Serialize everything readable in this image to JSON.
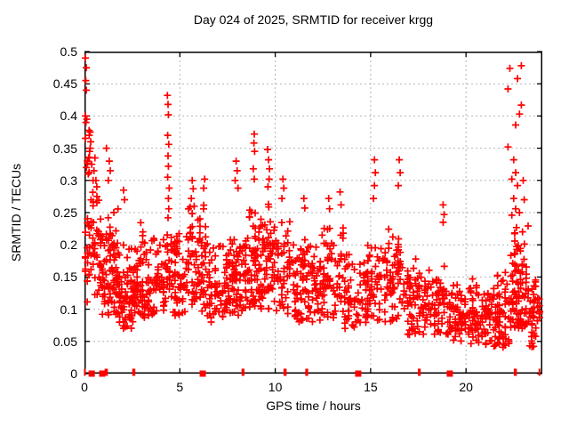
{
  "chart_data": {
    "type": "scatter",
    "title": "Day 024 of 2025, SRMTID for receiver krgg",
    "xlabel": "GPS time / hours",
    "ylabel": "SRMTID / TECUs",
    "xlim": [
      0,
      24
    ],
    "ylim": [
      0,
      0.5
    ],
    "xtick_values": [
      0,
      5,
      10,
      15,
      20
    ],
    "xtick_labels": [
      "0",
      "5",
      "10",
      "15",
      "20"
    ],
    "ytick_values": [
      0,
      0.05,
      0.1,
      0.15,
      0.2,
      0.25,
      0.3,
      0.35,
      0.4,
      0.45,
      0.5
    ],
    "ytick_labels": [
      "0",
      "0.05",
      "0.1",
      "0.15",
      "0.2",
      "0.25",
      "0.3",
      "0.35",
      "0.4",
      "0.45",
      "0.5"
    ],
    "grid": true,
    "legend": "none",
    "marker": "plus",
    "marker_color": "#ff0000",
    "grid_color": "#b5b5b5",
    "frame_color": "#000000",
    "seed": 20250124,
    "outlier_points": [
      [
        0.05,
        0.49
      ],
      [
        0.1,
        0.475
      ],
      [
        0.07,
        0.455
      ],
      [
        0.1,
        0.44
      ],
      [
        0.05,
        0.4
      ],
      [
        0.12,
        0.395
      ],
      [
        0.08,
        0.39
      ],
      [
        0.3,
        0.375
      ],
      [
        0.25,
        0.37
      ],
      [
        0.33,
        0.36
      ],
      [
        0.3,
        0.35
      ],
      [
        0.27,
        0.345
      ],
      [
        0.22,
        0.335
      ],
      [
        0.15,
        0.33
      ],
      [
        0.38,
        0.325
      ],
      [
        0.1,
        0.32
      ],
      [
        0.2,
        0.31
      ],
      [
        0.45,
        0.3
      ],
      [
        0.55,
        0.335
      ],
      [
        0.5,
        0.315
      ],
      [
        0.6,
        0.3
      ],
      [
        0.65,
        0.29
      ],
      [
        1.15,
        0.35
      ],
      [
        1.3,
        0.33
      ],
      [
        1.35,
        0.315
      ],
      [
        1.25,
        0.3
      ],
      [
        2.05,
        0.285
      ],
      [
        2.1,
        0.27
      ],
      [
        4.35,
        0.432
      ],
      [
        4.38,
        0.418
      ],
      [
        4.4,
        0.402
      ],
      [
        4.36,
        0.37
      ],
      [
        4.42,
        0.356
      ],
      [
        4.38,
        0.338
      ],
      [
        4.4,
        0.322
      ],
      [
        4.36,
        0.305
      ],
      [
        4.44,
        0.288
      ],
      [
        4.4,
        0.272
      ],
      [
        4.42,
        0.256
      ],
      [
        4.38,
        0.242
      ],
      [
        5.65,
        0.3
      ],
      [
        5.7,
        0.287
      ],
      [
        5.6,
        0.272
      ],
      [
        5.75,
        0.26
      ],
      [
        6.3,
        0.302
      ],
      [
        6.25,
        0.288
      ],
      [
        7.95,
        0.33
      ],
      [
        8.0,
        0.315
      ],
      [
        7.9,
        0.3
      ],
      [
        8.05,
        0.288
      ],
      [
        8.9,
        0.372
      ],
      [
        8.88,
        0.358
      ],
      [
        8.92,
        0.345
      ],
      [
        8.85,
        0.318
      ],
      [
        8.9,
        0.302
      ],
      [
        9.6,
        0.348
      ],
      [
        9.65,
        0.332
      ],
      [
        9.7,
        0.318
      ],
      [
        9.68,
        0.302
      ],
      [
        9.62,
        0.29
      ],
      [
        10.4,
        0.302
      ],
      [
        10.45,
        0.288
      ],
      [
        10.35,
        0.272
      ],
      [
        11.5,
        0.272
      ],
      [
        11.55,
        0.257
      ],
      [
        12.8,
        0.272
      ],
      [
        12.85,
        0.256
      ],
      [
        13.4,
        0.282
      ],
      [
        13.45,
        0.262
      ],
      [
        15.2,
        0.332
      ],
      [
        15.25,
        0.312
      ],
      [
        15.2,
        0.292
      ],
      [
        15.15,
        0.272
      ],
      [
        16.5,
        0.332
      ],
      [
        16.55,
        0.312
      ],
      [
        16.45,
        0.292
      ],
      [
        18.8,
        0.262
      ],
      [
        18.85,
        0.247
      ],
      [
        18.8,
        0.235
      ],
      [
        22.3,
        0.474
      ],
      [
        22.9,
        0.478
      ],
      [
        22.7,
        0.458
      ],
      [
        22.2,
        0.442
      ],
      [
        22.9,
        0.417
      ],
      [
        22.8,
        0.403
      ],
      [
        22.6,
        0.386
      ],
      [
        22.2,
        0.352
      ],
      [
        22.5,
        0.332
      ],
      [
        22.6,
        0.312
      ],
      [
        22.4,
        0.302
      ],
      [
        22.7,
        0.292
      ],
      [
        22.5,
        0.272
      ],
      [
        22.6,
        0.256
      ],
      [
        22.8,
        0.25
      ],
      [
        22.4,
        0.246
      ],
      [
        23.0,
        0.3
      ],
      [
        23.05,
        0.27
      ]
    ],
    "cloud_clusters": [
      [
        0.0,
        0.3,
        25,
        0.1,
        0.22,
        0.38
      ],
      [
        0.3,
        0.9,
        45,
        0.12,
        0.2,
        0.33
      ],
      [
        0.9,
        1.8,
        90,
        0.09,
        0.16,
        0.26
      ],
      [
        1.8,
        2.5,
        60,
        0.07,
        0.125,
        0.2
      ],
      [
        2.5,
        3.2,
        65,
        0.08,
        0.14,
        0.25
      ],
      [
        3.2,
        4.2,
        65,
        0.09,
        0.14,
        0.22
      ],
      [
        4.2,
        4.6,
        25,
        0.1,
        0.16,
        0.24
      ],
      [
        4.6,
        5.4,
        55,
        0.09,
        0.145,
        0.22
      ],
      [
        5.4,
        6.6,
        90,
        0.09,
        0.16,
        0.27
      ],
      [
        6.6,
        7.6,
        65,
        0.08,
        0.13,
        0.21
      ],
      [
        7.6,
        8.4,
        65,
        0.09,
        0.15,
        0.25
      ],
      [
        8.4,
        9.0,
        55,
        0.1,
        0.17,
        0.28
      ],
      [
        9.0,
        9.8,
        65,
        0.1,
        0.18,
        0.29
      ],
      [
        9.8,
        10.8,
        65,
        0.09,
        0.16,
        0.25
      ],
      [
        10.8,
        12.2,
        90,
        0.08,
        0.14,
        0.22
      ],
      [
        12.2,
        13.6,
        85,
        0.08,
        0.14,
        0.24
      ],
      [
        13.6,
        14.8,
        65,
        0.07,
        0.12,
        0.19
      ],
      [
        14.8,
        15.6,
        50,
        0.08,
        0.14,
        0.24
      ],
      [
        15.6,
        16.6,
        65,
        0.08,
        0.15,
        0.23
      ],
      [
        16.6,
        17.6,
        60,
        0.06,
        0.115,
        0.18
      ],
      [
        17.6,
        18.9,
        75,
        0.06,
        0.11,
        0.17
      ],
      [
        18.9,
        20.2,
        75,
        0.05,
        0.09,
        0.14
      ],
      [
        20.2,
        21.4,
        75,
        0.045,
        0.095,
        0.15
      ],
      [
        21.4,
        22.3,
        70,
        0.04,
        0.095,
        0.16
      ],
      [
        22.3,
        23.3,
        95,
        0.07,
        0.13,
        0.25
      ],
      [
        23.3,
        23.9,
        45,
        0.04,
        0.09,
        0.15
      ]
    ],
    "zero_axis_squares": [
      0.38,
      0.93,
      6.2,
      14.35,
      19.15
    ],
    "zero_axis_ticks": [
      0.02,
      1.1,
      1.18,
      2.55,
      2.62,
      8.28,
      8.34,
      10.48,
      10.55,
      11.62,
      11.68,
      17.52,
      17.58,
      22.55,
      22.62,
      23.85
    ]
  }
}
